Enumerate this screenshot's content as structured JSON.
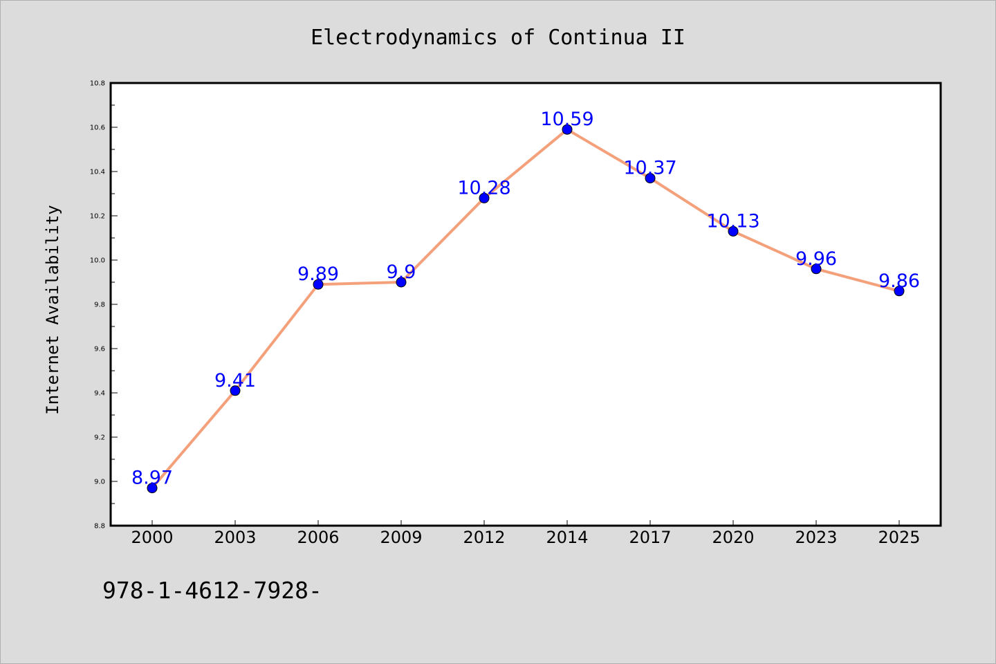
{
  "chart_data": {
    "type": "line",
    "title": "Electrodynamics of Continua II",
    "xlabel": "",
    "ylabel": "Internet Availability",
    "categories": [
      "2000",
      "2003",
      "2006",
      "2009",
      "2012",
      "2014",
      "2017",
      "2020",
      "2023",
      "2025"
    ],
    "series": [
      {
        "values": [
          8.97,
          9.41,
          9.89,
          9.9,
          10.28,
          10.59,
          10.37,
          10.13,
          9.96,
          9.86
        ]
      }
    ],
    "data_labels": [
      "8.97",
      "9.41",
      "9.89",
      "9.9",
      "10.28",
      "10.59",
      "10.37",
      "10.13",
      "9.96",
      "9.86"
    ],
    "ylim": [
      8.8,
      10.8
    ],
    "yticks": [
      "8.8",
      "9.0",
      "9.2",
      "9.4",
      "9.6",
      "9.8",
      "10.0",
      "10.2",
      "10.4",
      "10.6",
      "10.8"
    ],
    "grid": false,
    "legend": "none",
    "footnote": "978-1-4612-7928-",
    "colors": {
      "line": "#f4a07a",
      "marker": "#0000ff",
      "label": "#0000ff",
      "background": "#dcdcdc",
      "plot_background": "#ffffff"
    }
  }
}
